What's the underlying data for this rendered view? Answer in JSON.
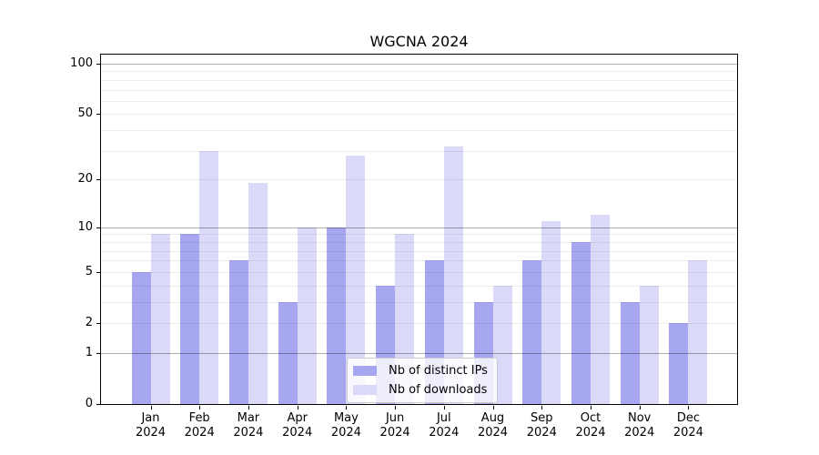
{
  "figure": {
    "title": "WGCNA 2024"
  },
  "chart_data": {
    "type": "bar",
    "title": "WGCNA 2024",
    "categories": [
      "Jan",
      "Feb",
      "Mar",
      "Apr",
      "May",
      "Jun",
      "Jul",
      "Aug",
      "Sep",
      "Oct",
      "Nov",
      "Dec"
    ],
    "year": "2024",
    "series": [
      {
        "name": "Nb of distinct IPs",
        "color": "#a6a6f1",
        "values": [
          5,
          9,
          6,
          3,
          10,
          4,
          6,
          3,
          6,
          8,
          3,
          2
        ]
      },
      {
        "name": "Nb of downloads",
        "color": "#dadaf8",
        "values": [
          9,
          30,
          19,
          10,
          28,
          9,
          32,
          4,
          11,
          12,
          4,
          6
        ]
      }
    ],
    "yscale": "log10(1+y)",
    "ylim": [
      0,
      116
    ],
    "yticks": [
      0,
      1,
      2,
      5,
      10,
      20,
      50,
      100
    ],
    "gridlines": {
      "major": [
        1,
        10,
        100
      ],
      "minor": [
        2,
        3,
        4,
        5,
        6,
        7,
        8,
        9,
        20,
        30,
        40,
        50,
        60,
        70,
        80,
        90
      ]
    },
    "grid": true,
    "legend_position": "bottom-center",
    "xlabel": "",
    "ylabel": ""
  },
  "colors": {
    "ips_bar": "#a6a6f1",
    "downloads_bar": "#dadaf8",
    "spine": "#000000",
    "legend_border": "#cccccc"
  }
}
